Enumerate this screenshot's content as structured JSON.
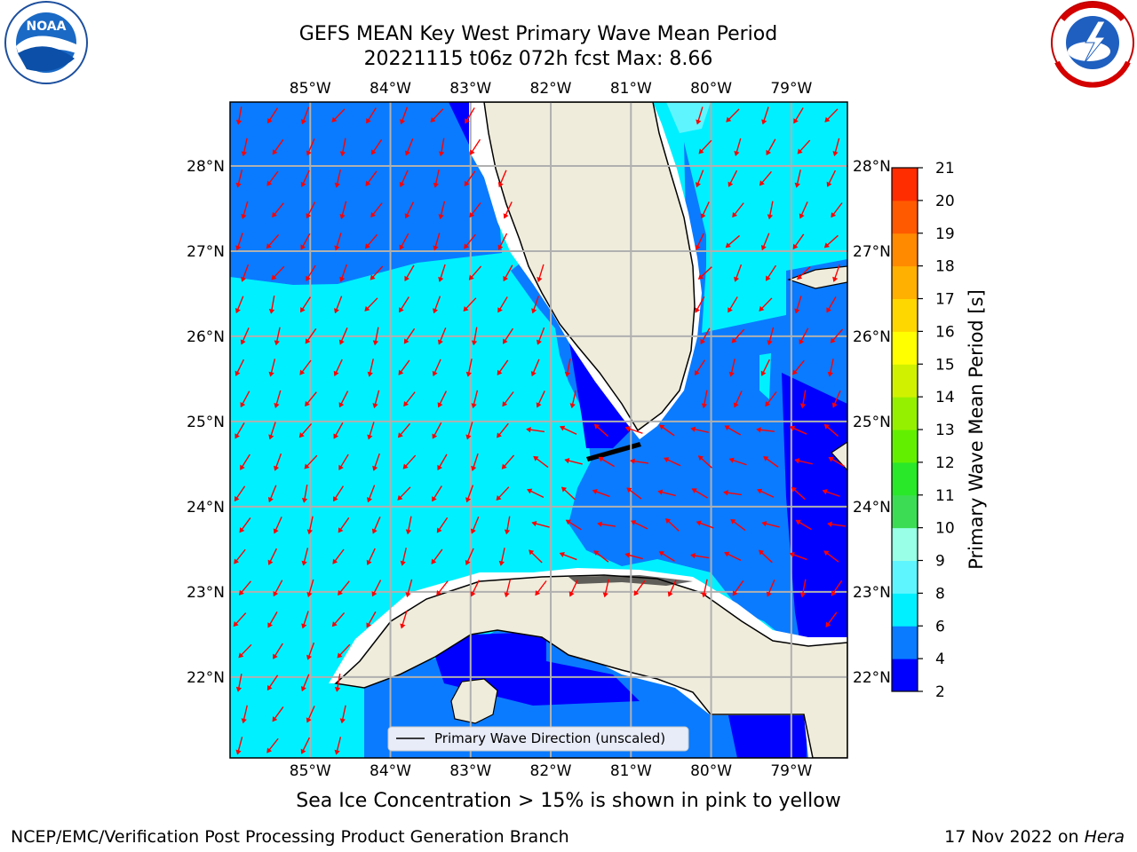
{
  "title": {
    "line1": "GEFS MEAN Key West Primary Wave Mean Period",
    "line2": "20221115 t06z 072h fcst   Max: 8.66"
  },
  "logos": {
    "left_icon": "noaa-logo-icon",
    "right_icon": "nws-logo-icon"
  },
  "map": {
    "lon_labels": [
      "85°W",
      "84°W",
      "83°W",
      "82°W",
      "81°W",
      "80°W",
      "79°W"
    ],
    "lat_labels": [
      "28°N",
      "27°N",
      "26°N",
      "25°N",
      "24°N",
      "23°N",
      "22°N"
    ],
    "lon_range": [
      -86,
      -78.3
    ],
    "lat_range": [
      21.05,
      28.75
    ],
    "legend_label": "Primary Wave Direction (unscaled)",
    "arrow_color": "#ff0000",
    "land_color": "#efecdc",
    "grid": true
  },
  "colorbar": {
    "label": "Primary Wave Mean Period [s]",
    "ticks": [
      "2",
      "4",
      "6",
      "8",
      "9",
      "10",
      "11",
      "12",
      "13",
      "14",
      "15",
      "16",
      "17",
      "18",
      "19",
      "20",
      "21"
    ],
    "colors": [
      "#0000ff",
      "#0a7bff",
      "#00f0ff",
      "#5ff5ff",
      "#99ffe6",
      "#3ddc55",
      "#29e829",
      "#62f000",
      "#95f000",
      "#d0f200",
      "#ffff00",
      "#ffd700",
      "#ffb000",
      "#ff8a00",
      "#ff5a00",
      "#ff2d00",
      "#ff0000"
    ]
  },
  "chart_data": {
    "type": "heatmap",
    "title": "GEFS MEAN Key West Primary Wave Mean Period",
    "colorbar_label": "Primary Wave Mean Period [s]",
    "max": 8.66,
    "levels": [
      2,
      4,
      6,
      8,
      9,
      10,
      11,
      12,
      13,
      14,
      15,
      16,
      17,
      18,
      19,
      20,
      21
    ]
  },
  "note": "Sea Ice Concentration > 15% is shown in pink to yellow",
  "footer": {
    "left": "NCEP/EMC/Verification Post Processing Product Generation Branch",
    "right_prefix": "17 Nov 2022 on ",
    "right_italic": "Hera"
  }
}
